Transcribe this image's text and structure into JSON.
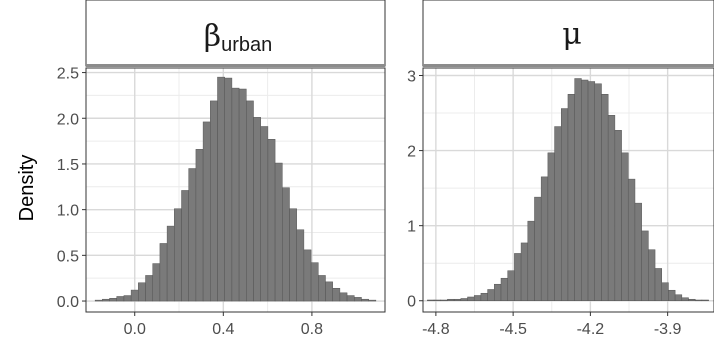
{
  "figure": {
    "ylabel": "Density",
    "colors": {
      "bar_fill": "#7a7a7a",
      "bar_edge": "#555555",
      "grid": "#d9d9d9",
      "panel_border": "#333333",
      "strip_bg": "#ffffff",
      "strip_bar": "#8c8c8c"
    }
  },
  "chart_data": [
    {
      "type": "bar",
      "panel_title": "β",
      "panel_title_sub": "urban",
      "xlim": [
        -0.22,
        1.13
      ],
      "ylim": [
        -0.12,
        2.55
      ],
      "x_ticks": [
        0.0,
        0.4,
        0.8
      ],
      "x_tick_labels": [
        "0.0",
        "0.4",
        "0.8"
      ],
      "y_ticks": [
        0.0,
        0.5,
        1.0,
        1.5,
        2.0,
        2.5
      ],
      "y_tick_labels": [
        "0.0",
        "0.5",
        "1.0",
        "1.5",
        "2.0",
        "2.5"
      ],
      "bin_width": 0.0325,
      "bin_centers": [
        -0.1625,
        -0.13,
        -0.0975,
        -0.065,
        -0.0325,
        0.0,
        0.0325,
        0.065,
        0.0975,
        0.13,
        0.1625,
        0.195,
        0.2275,
        0.26,
        0.2925,
        0.325,
        0.3575,
        0.39,
        0.4225,
        0.455,
        0.4875,
        0.52,
        0.5525,
        0.585,
        0.6175,
        0.65,
        0.6825,
        0.715,
        0.7475,
        0.78,
        0.8125,
        0.845,
        0.8775,
        0.91,
        0.9425,
        0.975,
        1.0075,
        1.04,
        1.0725
      ],
      "densities": [
        0.01,
        0.02,
        0.03,
        0.05,
        0.06,
        0.12,
        0.2,
        0.28,
        0.41,
        0.63,
        0.82,
        1.01,
        1.21,
        1.45,
        1.66,
        1.96,
        2.19,
        2.45,
        2.44,
        2.33,
        2.32,
        2.19,
        2.01,
        1.91,
        1.77,
        1.51,
        1.24,
        1.01,
        0.78,
        0.56,
        0.42,
        0.28,
        0.21,
        0.14,
        0.09,
        0.06,
        0.04,
        0.02,
        0.01
      ]
    },
    {
      "type": "bar",
      "panel_title": "μ",
      "panel_title_sub": "",
      "xlim": [
        -4.85,
        -3.72
      ],
      "ylim": [
        -0.15,
        3.1
      ],
      "x_ticks": [
        -4.8,
        -4.5,
        -4.2,
        -3.9
      ],
      "x_tick_labels": [
        "-4.8",
        "-4.5",
        "-4.2",
        "-3.9"
      ],
      "y_ticks": [
        0,
        1,
        2,
        3
      ],
      "y_tick_labels": [
        "0",
        "1",
        "2",
        "3"
      ],
      "bin_width": 0.0262,
      "bin_centers": [
        -4.82,
        -4.794,
        -4.768,
        -4.742,
        -4.716,
        -4.69,
        -4.664,
        -4.638,
        -4.612,
        -4.586,
        -4.56,
        -4.534,
        -4.508,
        -4.482,
        -4.456,
        -4.43,
        -4.404,
        -4.378,
        -4.352,
        -4.326,
        -4.3,
        -4.274,
        -4.248,
        -4.222,
        -4.196,
        -4.17,
        -4.144,
        -4.118,
        -4.092,
        -4.066,
        -4.04,
        -4.014,
        -3.988,
        -3.962,
        -3.936,
        -3.91,
        -3.884,
        -3.858,
        -3.832,
        -3.806,
        -3.78,
        -3.754
      ],
      "densities": [
        0.01,
        0.01,
        0.01,
        0.02,
        0.02,
        0.03,
        0.05,
        0.07,
        0.1,
        0.15,
        0.22,
        0.3,
        0.4,
        0.63,
        0.77,
        1.06,
        1.38,
        1.65,
        1.97,
        2.32,
        2.56,
        2.75,
        2.96,
        2.94,
        2.92,
        2.89,
        2.75,
        2.47,
        2.27,
        1.97,
        1.62,
        1.3,
        0.93,
        0.68,
        0.43,
        0.24,
        0.14,
        0.08,
        0.04,
        0.02,
        0.01,
        0.01
      ]
    }
  ]
}
